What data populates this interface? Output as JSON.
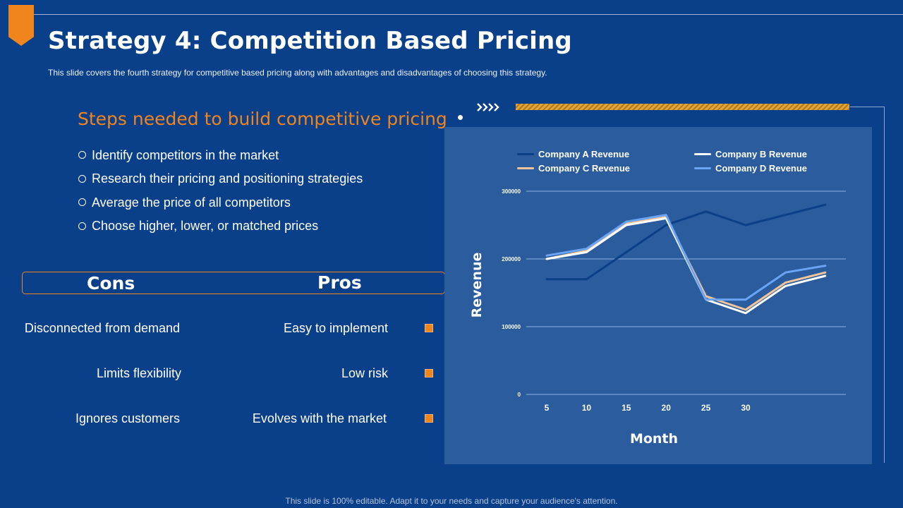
{
  "title": "Strategy 4: Competition Based Pricing",
  "subtitle": "This slide covers the fourth strategy for competitive  based pricing along with advantages and disadvantages of choosing  this strategy.",
  "steps": {
    "title": "Steps needed to build competitive pricing",
    "items": [
      "Identify competitors in the market",
      "Research their pricing and positioning strategies",
      "Average the price of all competitors",
      "Choose higher, lower, or matched prices"
    ]
  },
  "cons_pros": {
    "cons_label": "Cons",
    "pros_label": "Pros",
    "cons": [
      "Disconnected from demand",
      "Limits flexibility",
      "Ignores customers"
    ],
    "pros": [
      "Easy to implement",
      "Low risk",
      "Evolves with the market"
    ]
  },
  "footer": "This slide is 100% editable. Adapt it to your needs and capture your audience's attention.",
  "colors": {
    "background": "#0a3f8a",
    "accent": "#f0851e",
    "chart_panel": "#2a5c9e"
  },
  "chart_data": {
    "type": "line",
    "title": "",
    "xlabel": "Month",
    "ylabel": "Revenue",
    "x_ticks": [
      "5",
      "10",
      "15",
      "20",
      "25",
      "30"
    ],
    "x": [
      5,
      10,
      15,
      20,
      25,
      30,
      35,
      40
    ],
    "xlim": [
      5,
      40
    ],
    "ylim": [
      0,
      300000
    ],
    "y_ticks": [
      "0",
      "100000",
      "200000",
      "300000"
    ],
    "grid": true,
    "legend_position": "top",
    "series": [
      {
        "name": "Company A Revenue",
        "color": "#0b3f86",
        "values": [
          170000,
          170000,
          210000,
          250000,
          270000,
          250000,
          265000,
          280000
        ]
      },
      {
        "name": "Company B Revenue",
        "color": "#ffffff",
        "values": [
          200000,
          210000,
          250000,
          260000,
          140000,
          120000,
          160000,
          175000
        ]
      },
      {
        "name": "Company C Revenue",
        "color": "#f2c49a",
        "values": [
          200000,
          212000,
          252000,
          262000,
          145000,
          125000,
          165000,
          180000
        ]
      },
      {
        "name": "Company D Revenue",
        "color": "#6ba3f5",
        "values": [
          205000,
          215000,
          255000,
          265000,
          140000,
          140000,
          180000,
          190000
        ]
      }
    ]
  }
}
